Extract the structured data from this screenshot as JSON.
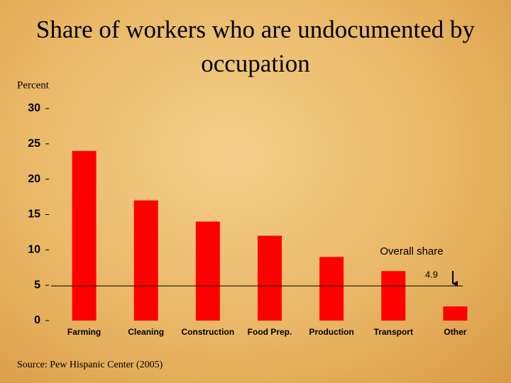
{
  "chart_data": {
    "type": "bar",
    "title": "Share of workers who are undocumented by occupation",
    "y_label": "Percent",
    "categories": [
      "Farming",
      "Cleaning",
      "Construction",
      "Food Prep.",
      "Production",
      "Transport",
      "Other"
    ],
    "values": [
      24,
      17,
      14,
      12,
      9,
      7,
      2
    ],
    "color": "#ff0000",
    "ylim": [
      0,
      30
    ],
    "yticks": [
      0,
      5,
      10,
      15,
      20,
      25,
      30
    ],
    "grid": false,
    "reference_line": {
      "value": 4.9,
      "label": "Overall share"
    },
    "source": "Source: Pew Hispanic Center (2005)"
  }
}
